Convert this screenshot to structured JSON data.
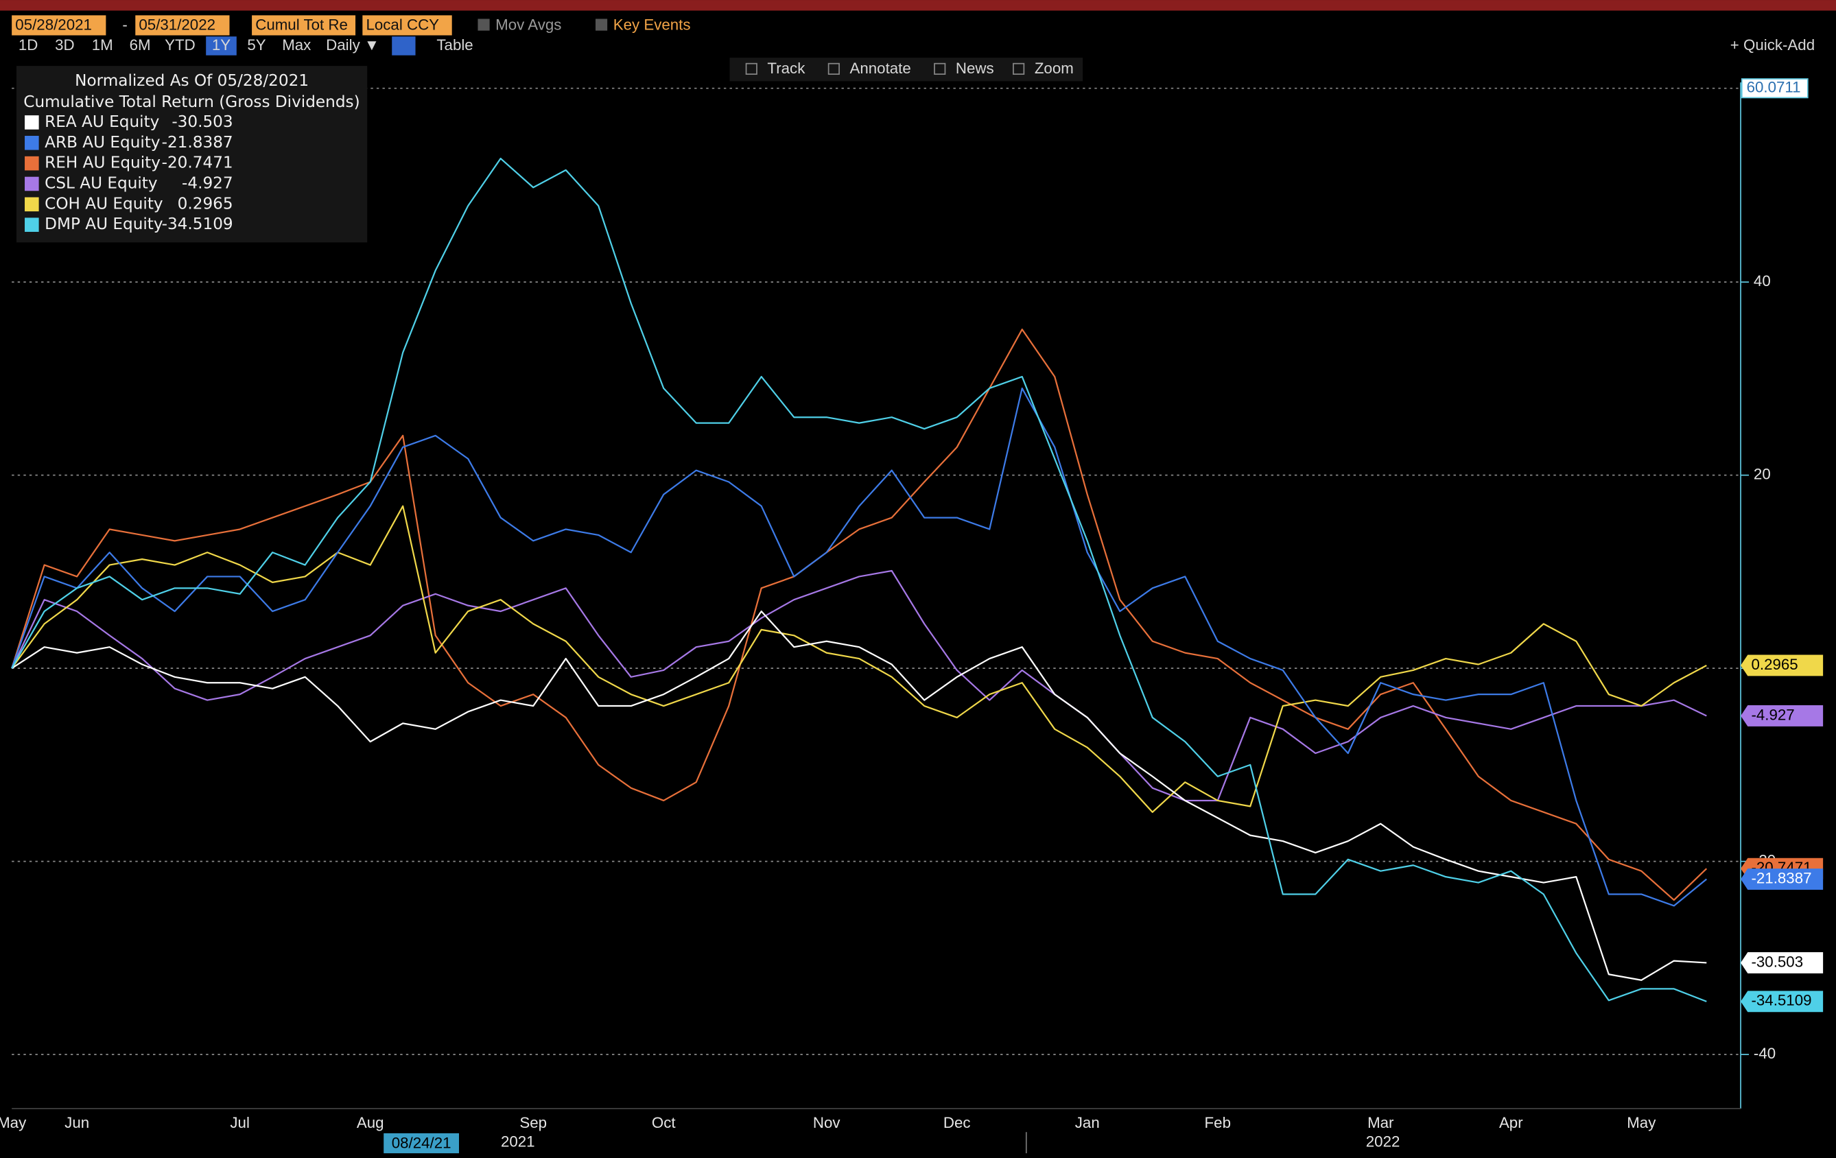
{
  "toolbar": {
    "start_date": "05/28/2021",
    "date_sep": "-",
    "end_date": "05/31/2022",
    "field": "Cumul Tot Re",
    "currency": "Local CCY",
    "mov_avgs": "Mov Avgs",
    "key_events": "Key Events",
    "ranges": [
      "1D",
      "3D",
      "1M",
      "6M",
      "YTD",
      "1Y",
      "5Y",
      "Max"
    ],
    "selected_range": 5,
    "frequency": "Daily ▼",
    "table": "Table",
    "tools": [
      "Track",
      "Annotate",
      "News",
      "Zoom"
    ],
    "quick_add": "+ Quick-Add"
  },
  "chart_data": {
    "type": "line",
    "legend_title": "Normalized As Of 05/28/2021",
    "legend_subtitle": "Cumulative Total Return (Gross Dividends)",
    "categories": [
      "May",
      null,
      "Jun",
      null,
      null,
      null,
      null,
      "Jul",
      null,
      null,
      null,
      "Aug",
      null,
      null,
      null,
      null,
      "Sep",
      null,
      null,
      null,
      "Oct",
      null,
      null,
      null,
      null,
      "Nov",
      null,
      null,
      null,
      "Dec",
      null,
      null,
      null,
      "Jan",
      null,
      null,
      null,
      "Feb",
      null,
      null,
      null,
      null,
      "Mar",
      null,
      null,
      null,
      "Apr",
      null,
      null,
      null,
      "May",
      null,
      null
    ],
    "x_years": [
      "2021",
      "2022"
    ],
    "cursor_label": "08/24/21",
    "ylim": [
      -45.6,
      60.0711
    ],
    "yticks": [
      40,
      20,
      0,
      -20,
      -40
    ],
    "grid": true,
    "series": [
      {
        "name": "REA AU Equity",
        "color": "#ffffff",
        "values": [
          0,
          2.2,
          1.6,
          2.2,
          0.4,
          -0.9,
          -1.5,
          -1.5,
          -2.1,
          -0.9,
          -3.9,
          -7.6,
          -5.7,
          -6.3,
          -4.5,
          -3.3,
          -3.9,
          1,
          -3.9,
          -3.9,
          -2.7,
          -0.9,
          1,
          5.9,
          2.2,
          2.8,
          2.2,
          0.4,
          -3.3,
          -0.9,
          1,
          2.2,
          -2.7,
          -5.1,
          -8.8,
          -11.2,
          -13.7,
          -15.5,
          -17.3,
          -17.9,
          -19.1,
          -17.9,
          -16.1,
          -18.5,
          -19.8,
          -21,
          -21.6,
          -22.2,
          -21.6,
          -31.7,
          -32.3,
          -30.3,
          -30.503
        ]
      },
      {
        "name": "ARB AU Equity",
        "color": "#3d7be8",
        "values": [
          0,
          9.5,
          8.3,
          12,
          8.3,
          5.9,
          9.5,
          9.5,
          5.9,
          7.1,
          12,
          16.8,
          22.9,
          24.1,
          21.7,
          15.6,
          13.2,
          14.4,
          13.8,
          12,
          18,
          20.5,
          19.3,
          16.8,
          9.5,
          12,
          16.8,
          20.5,
          15.6,
          15.6,
          14.4,
          29,
          22.9,
          12,
          5.9,
          8.3,
          9.5,
          2.8,
          1,
          -0.2,
          -5.1,
          -8.8,
          -1.5,
          -2.7,
          -3.3,
          -2.7,
          -2.7,
          -1.5,
          -13.7,
          -23.4,
          -23.4,
          -24.6,
          -21.8387
        ]
      },
      {
        "name": "REH AU Equity",
        "color": "#e8703a",
        "values": [
          0,
          10.7,
          9.5,
          14.4,
          13.8,
          13.2,
          13.8,
          14.4,
          15.6,
          16.8,
          18,
          19.3,
          24.1,
          3.4,
          -1.5,
          -3.9,
          -2.7,
          -5.1,
          -10,
          -12.4,
          -13.7,
          -11.8,
          -3.9,
          8.3,
          9.5,
          12,
          14.4,
          15.6,
          19.3,
          22.9,
          29,
          35.1,
          30.2,
          18,
          7.1,
          2.8,
          1.6,
          1,
          -1.5,
          -3.3,
          -5.1,
          -6.3,
          -2.7,
          -1.5,
          -6.3,
          -11.2,
          -13.7,
          -14.9,
          -16.1,
          -19.8,
          -21,
          -24,
          -20.7471
        ]
      },
      {
        "name": "CSL AU Equity",
        "color": "#a678e6",
        "values": [
          0,
          7.1,
          5.9,
          3.4,
          1,
          -2.1,
          -3.3,
          -2.7,
          -0.9,
          1,
          2.2,
          3.4,
          6.5,
          7.7,
          6.5,
          5.9,
          7.1,
          8.3,
          3.4,
          -0.9,
          -0.2,
          2.2,
          2.8,
          5.2,
          7.1,
          8.3,
          9.5,
          10.1,
          4.6,
          -0.2,
          -3.3,
          -0.2,
          -2.7,
          -5.1,
          -8.8,
          -12.4,
          -13.7,
          -13.7,
          -5.1,
          -6.3,
          -8.8,
          -7.6,
          -5.1,
          -3.9,
          -5.1,
          -5.7,
          -6.3,
          -5.1,
          -3.9,
          -3.9,
          -3.9,
          -3.3,
          -4.927
        ]
      },
      {
        "name": "COH AU Equity",
        "color": "#f0d84a",
        "values": [
          0,
          4.6,
          7.1,
          10.7,
          11.3,
          10.7,
          12,
          10.7,
          8.9,
          9.5,
          12,
          10.7,
          16.8,
          1.6,
          5.9,
          7.1,
          4.6,
          2.8,
          -0.9,
          -2.7,
          -3.9,
          -2.7,
          -1.5,
          4,
          3.4,
          1.6,
          1,
          -0.9,
          -3.9,
          -5.1,
          -2.7,
          -1.5,
          -6.3,
          -8.2,
          -11.2,
          -14.9,
          -11.8,
          -13.7,
          -14.3,
          -3.9,
          -3.3,
          -3.9,
          -0.9,
          -0.2,
          1,
          0.4,
          1.6,
          4.6,
          2.8,
          -2.7,
          -3.9,
          -1.5,
          0.2965
        ]
      },
      {
        "name": "DMP AU Equity",
        "color": "#4fd0e8",
        "values": [
          0,
          5.9,
          8.3,
          9.5,
          7.1,
          8.3,
          8.3,
          7.7,
          12,
          10.7,
          15.6,
          19.3,
          32.7,
          41.2,
          47.9,
          52.8,
          49.8,
          51.6,
          47.9,
          37.8,
          29,
          25.4,
          25.4,
          30.2,
          26,
          26,
          25.4,
          26,
          24.8,
          26,
          29,
          30.2,
          21.7,
          13.2,
          3.4,
          -5.1,
          -7.6,
          -11.2,
          -10,
          -23.4,
          -23.4,
          -19.8,
          -21,
          -20.4,
          -21.6,
          -22.2,
          -21,
          -23.4,
          -29.5,
          -34.4,
          -33.2,
          -33.2,
          -34.5109
        ]
      }
    ]
  }
}
